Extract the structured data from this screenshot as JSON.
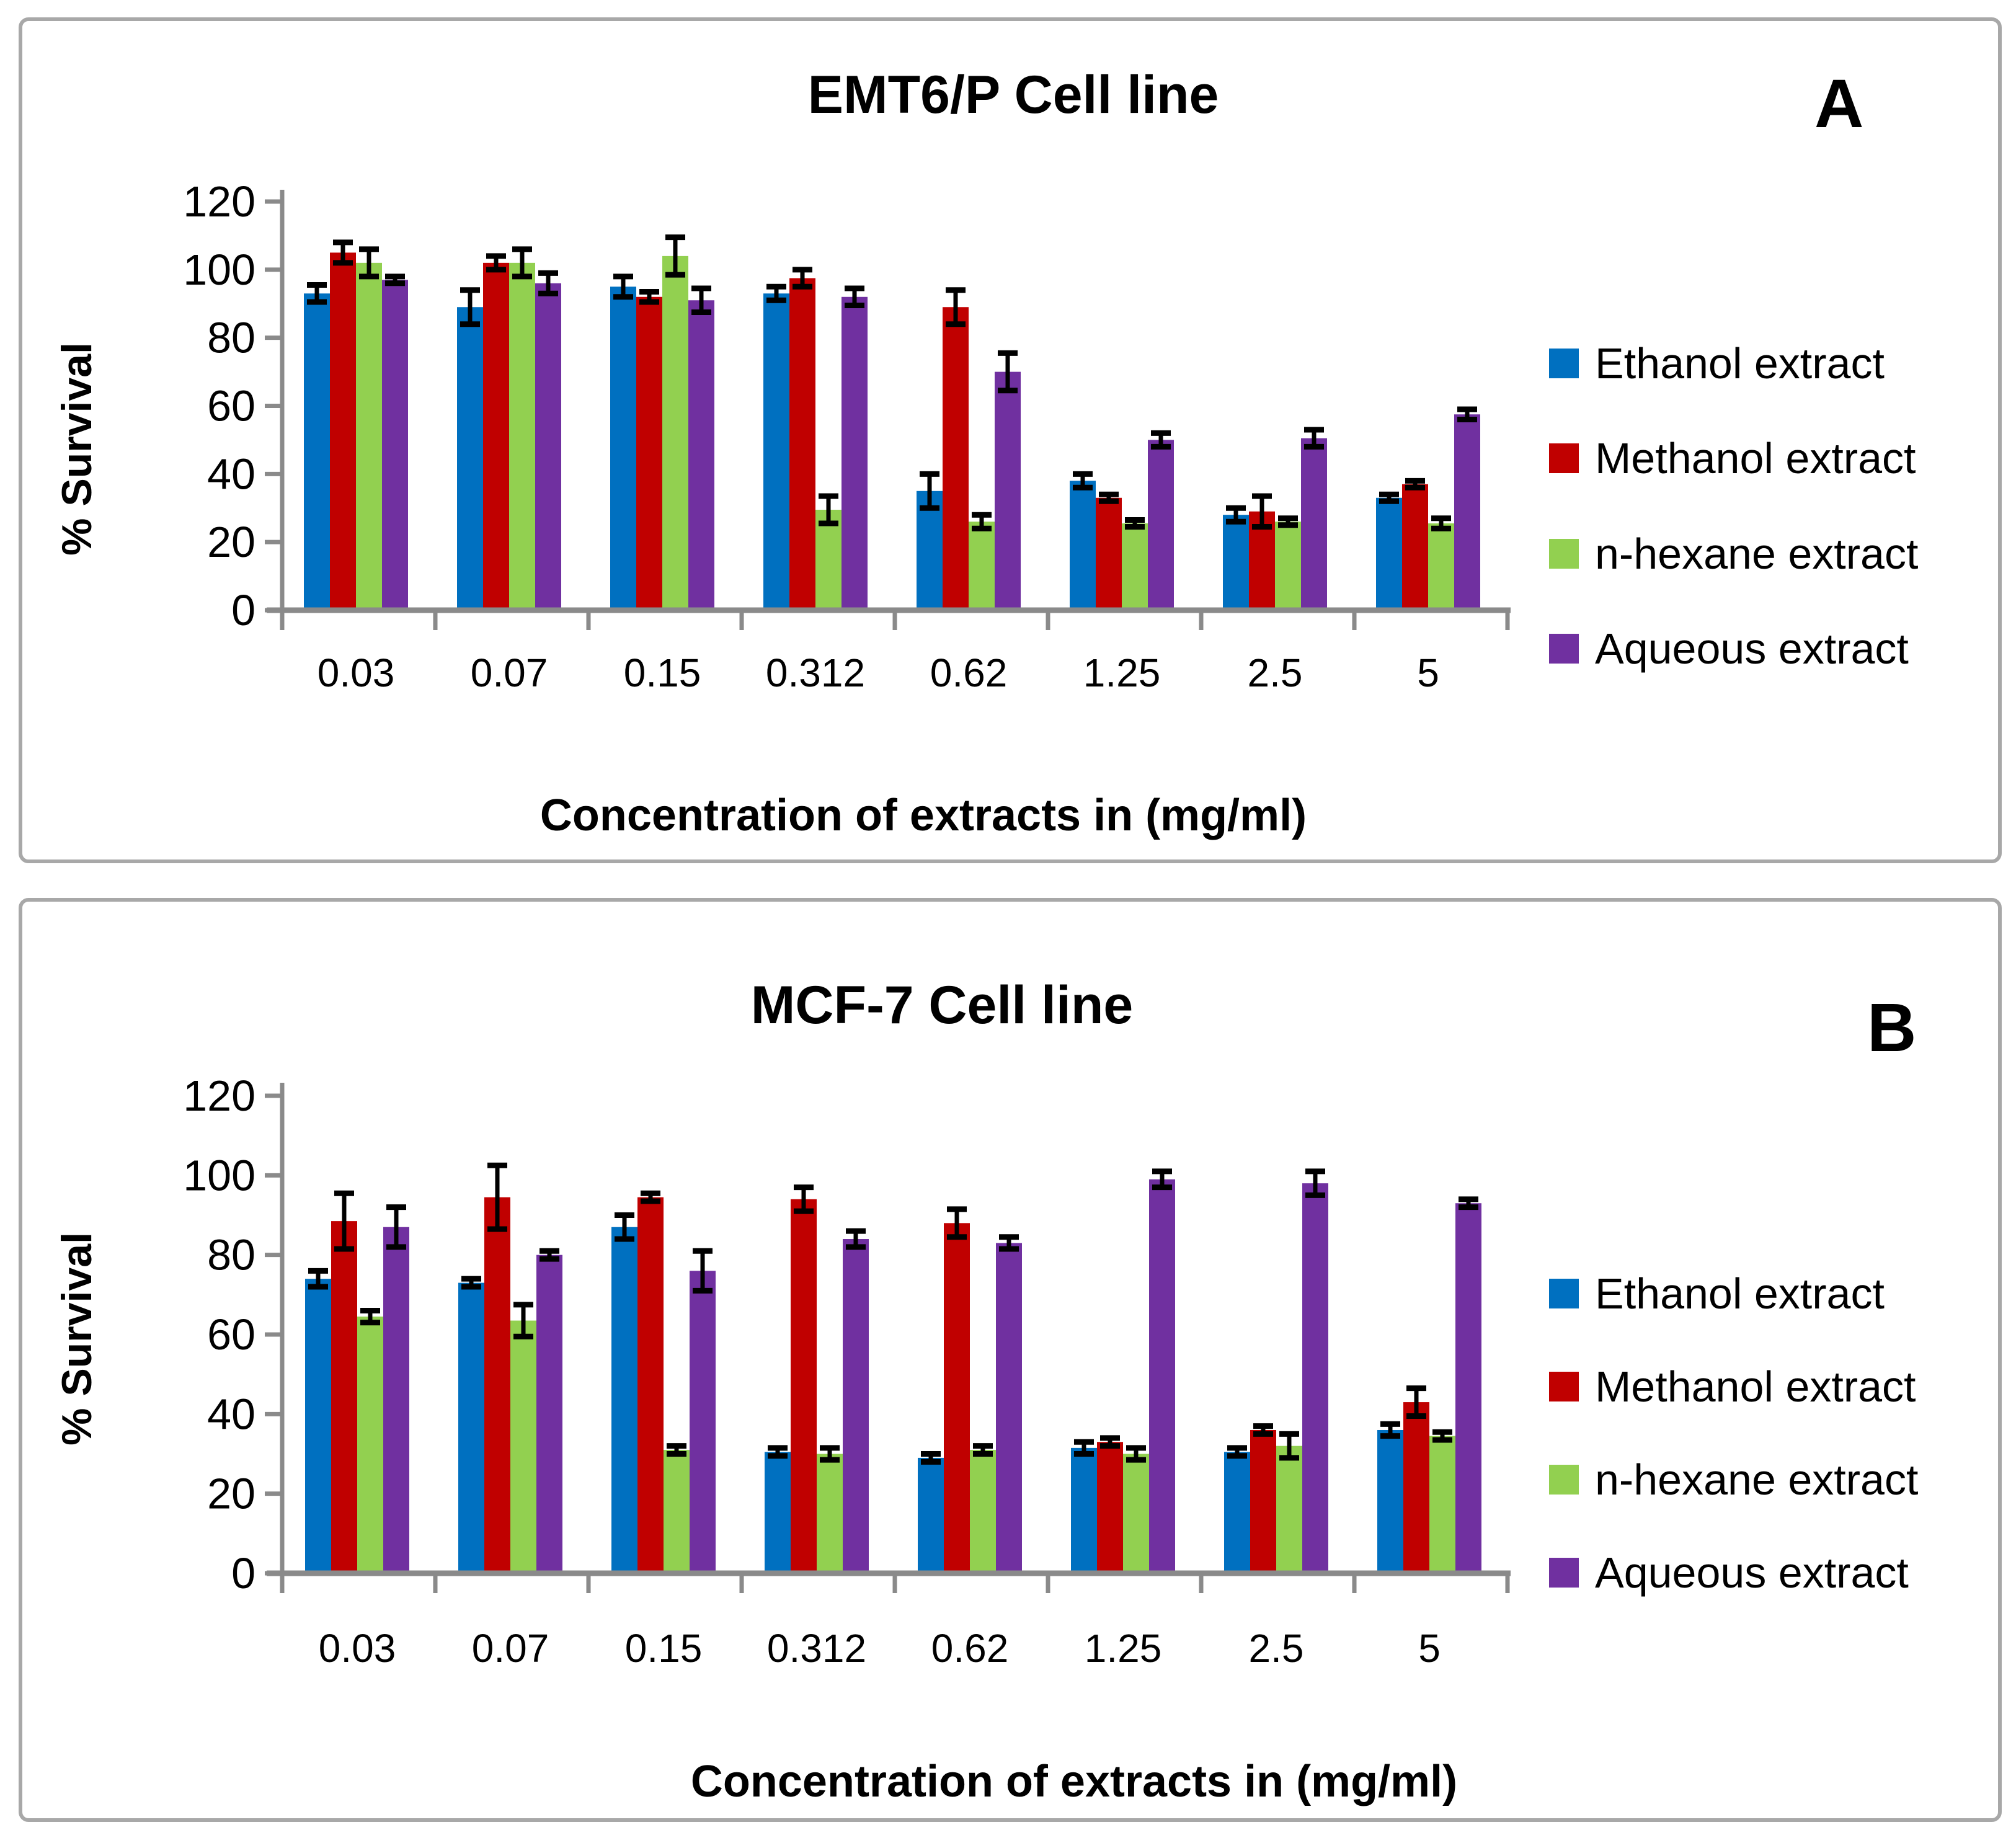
{
  "page": {
    "background": "#ffffff",
    "border_color": "#a8a8a8",
    "axis_color": "#8a8a8a",
    "error_bar_color": "#000000"
  },
  "panels": [
    {
      "label": "A",
      "title": "EMT6/P Cell line",
      "y_axis_title": "% Survival",
      "x_axis_title": "Concentration of extracts in (mg/ml)"
    },
    {
      "label": "B",
      "title": "MCF-7 Cell line",
      "y_axis_title": "% Survival",
      "x_axis_title": "Concentration of extracts in (mg/ml)"
    }
  ],
  "chart_data": [
    {
      "type": "bar",
      "title": "EMT6/P Cell line",
      "xlabel": "Concentration of extracts in (mg/ml)",
      "ylabel": "% Survival",
      "ylim": [
        0,
        120
      ],
      "ytick_step": 20,
      "yticks": [
        0,
        20,
        40,
        60,
        80,
        100,
        120
      ],
      "grid": false,
      "legend_position": "right",
      "categories": [
        "0.03",
        "0.07",
        "0.15",
        "0.312",
        "0.62",
        "1.25",
        "2.5",
        "5"
      ],
      "series": [
        {
          "name": "Ethanol extract",
          "color": "#0070C0",
          "values": [
            93,
            89,
            95,
            93,
            35,
            38,
            28,
            33
          ],
          "errors": [
            2.5,
            5,
            3,
            2,
            5,
            2,
            2,
            1
          ]
        },
        {
          "name": "Methanol extract",
          "color": "#C00000",
          "values": [
            105,
            102,
            92,
            97.5,
            89,
            33,
            29,
            37
          ],
          "errors": [
            3,
            2,
            1.5,
            2.5,
            5,
            1,
            4.5,
            1
          ]
        },
        {
          "name": "n-hexane extract",
          "color": "#92D050",
          "values": [
            102,
            102,
            104,
            29.5,
            26,
            25.5,
            26,
            25.5
          ],
          "errors": [
            4,
            4,
            5.5,
            4,
            2,
            1,
            1,
            1.5
          ]
        },
        {
          "name": "Aqueous extract",
          "color": "#7030A0",
          "values": [
            97,
            96,
            91,
            92,
            70,
            50,
            50.5,
            57.5
          ],
          "errors": [
            1,
            3,
            3.5,
            2.5,
            5.5,
            2,
            2.5,
            1.5
          ]
        }
      ]
    },
    {
      "type": "bar",
      "title": "MCF-7 Cell line",
      "xlabel": "Concentration of extracts in (mg/ml)",
      "ylabel": "% Survival",
      "ylim": [
        0,
        120
      ],
      "ytick_step": 20,
      "yticks": [
        0,
        20,
        40,
        60,
        80,
        100,
        120
      ],
      "grid": false,
      "legend_position": "right",
      "categories": [
        "0.03",
        "0.07",
        "0.15",
        "0.312",
        "0.62",
        "1.25",
        "2.5",
        "5"
      ],
      "series": [
        {
          "name": "Ethanol extract",
          "color": "#0070C0",
          "values": [
            74,
            73,
            87,
            30.5,
            29,
            31.5,
            30.5,
            36
          ],
          "errors": [
            2,
            1,
            3,
            1,
            1,
            1.5,
            1,
            1.5
          ]
        },
        {
          "name": "Methanol extract",
          "color": "#C00000",
          "values": [
            88.5,
            94.5,
            94.5,
            94,
            88,
            33,
            36,
            43
          ],
          "errors": [
            7,
            8,
            1,
            3,
            3.5,
            1,
            1,
            3.5
          ]
        },
        {
          "name": "n-hexane extract",
          "color": "#92D050",
          "values": [
            64.5,
            63.5,
            31,
            30,
            31,
            30,
            32,
            34.5
          ],
          "errors": [
            1.5,
            4,
            1,
            1.5,
            1,
            1.5,
            3,
            1
          ]
        },
        {
          "name": "Aqueous extract",
          "color": "#7030A0",
          "values": [
            87,
            80,
            76,
            84,
            83,
            99,
            98,
            93
          ],
          "errors": [
            5,
            1,
            5,
            2,
            1.5,
            2,
            3,
            1
          ]
        }
      ]
    }
  ]
}
